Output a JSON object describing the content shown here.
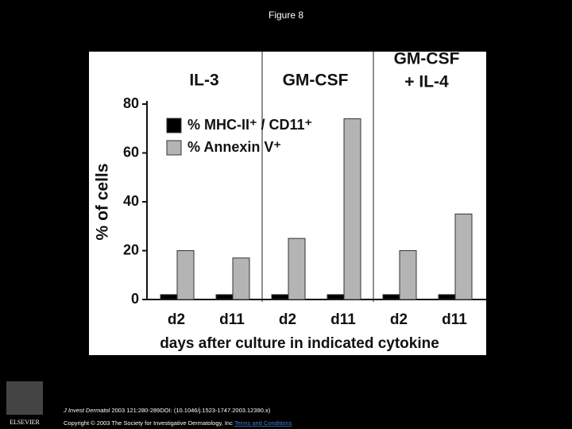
{
  "slide_title": "Figure 8",
  "chart_data": {
    "type": "bar",
    "groups": [
      [
        "IL-3"
      ],
      [
        "GM-CSF"
      ],
      [
        "GM-CSF",
        "+ IL-4"
      ]
    ],
    "categories": [
      "d2",
      "d11",
      "d2",
      "d11",
      "d2",
      "d11"
    ],
    "series": [
      {
        "name": "% MHC-II⁺ / CD11⁺",
        "color": "#000000",
        "values": [
          2,
          2,
          2,
          2,
          2,
          2
        ]
      },
      {
        "name": "% Annexin V⁺",
        "color": "#b4b4b4",
        "values": [
          20,
          17,
          25,
          74,
          20,
          35
        ]
      }
    ],
    "ylabel": "% of cells",
    "xlabel": "days after culture in indicated cytokine",
    "ylim": [
      0,
      80
    ],
    "yticks": [
      0,
      20,
      40,
      60,
      80
    ],
    "legend": "top-left"
  },
  "footer": {
    "logo": "ELSEVIER",
    "journal": "J Invest Dermatol",
    "citation": "2003 121:280-289DOI: (10.1046/j.1523-1747.2003.12390.x)",
    "copyright": "Copyright © 2003 The Society for Investigative Dermatology, Inc",
    "link": "Terms and Conditions"
  }
}
